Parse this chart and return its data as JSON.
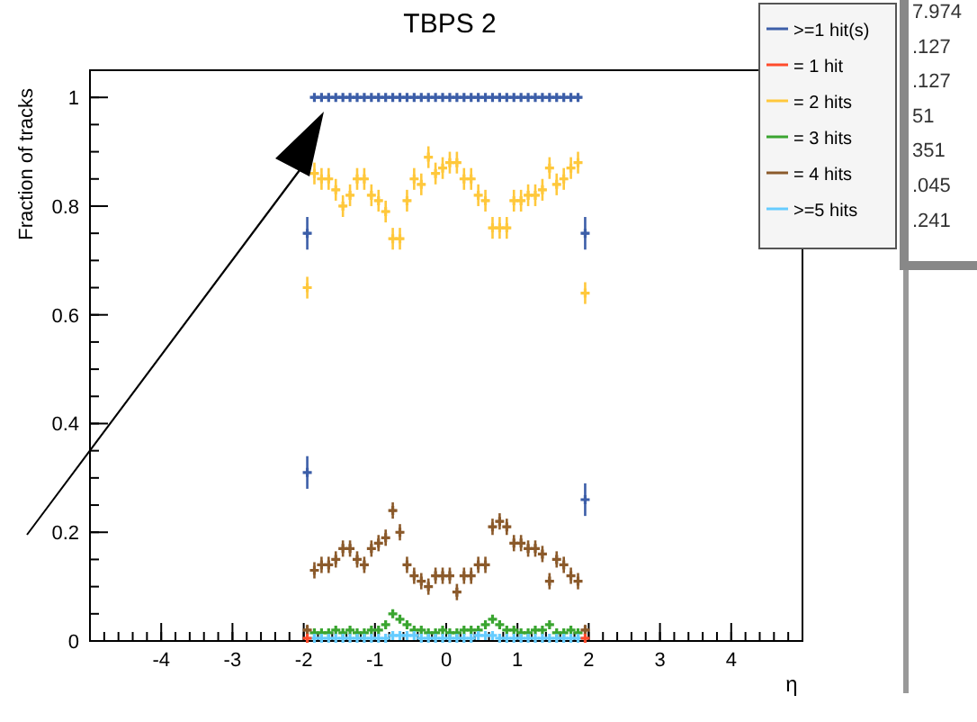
{
  "chart_data": {
    "type": "scatter",
    "title": "TBPS 2",
    "xlabel": "η",
    "ylabel": "Fraction of tracks",
    "xlim": [
      -5,
      5
    ],
    "ylim": [
      0,
      1.05
    ],
    "xticks": [
      -4,
      -3,
      -2,
      -1,
      0,
      1,
      2,
      3,
      4
    ],
    "yticks": [
      0,
      0.2,
      0.4,
      0.6,
      0.8,
      1
    ],
    "legend": "top right",
    "marker": "cross",
    "grid": false,
    "x": [
      -1.95,
      -1.85,
      -1.75,
      -1.65,
      -1.55,
      -1.45,
      -1.35,
      -1.25,
      -1.15,
      -1.05,
      -0.95,
      -0.85,
      -0.75,
      -0.65,
      -0.55,
      -0.45,
      -0.35,
      -0.25,
      -0.15,
      -0.05,
      0.05,
      0.15,
      0.25,
      0.35,
      0.45,
      0.55,
      0.65,
      0.75,
      0.85,
      0.95,
      1.05,
      1.15,
      1.25,
      1.35,
      1.45,
      1.55,
      1.65,
      1.75,
      1.85,
      1.95
    ],
    "series": [
      {
        "name": ">=1 hit(s)",
        "color": "#3c5ea8",
        "values": [
          0.75,
          1,
          1,
          1,
          1,
          1,
          1,
          1,
          1,
          1,
          1,
          1,
          1,
          1,
          1,
          1,
          1,
          1,
          1,
          1,
          1,
          1,
          1,
          1,
          1,
          1,
          1,
          1,
          1,
          1,
          1,
          1,
          1,
          1,
          1,
          1,
          1,
          1,
          1,
          0.75
        ],
        "errors": [
          0.03,
          null,
          null,
          null,
          null,
          null,
          null,
          null,
          null,
          null,
          null,
          null,
          null,
          null,
          null,
          null,
          null,
          null,
          null,
          null,
          null,
          null,
          null,
          null,
          null,
          null,
          null,
          null,
          null,
          null,
          null,
          null,
          null,
          null,
          null,
          null,
          null,
          null,
          null,
          0.03
        ],
        "xerrors": [
          0.05,
          0.05,
          0.05,
          0.05,
          0.05,
          0.05,
          0.05,
          0.05,
          0.05,
          0.05,
          0.05,
          0.05,
          0.05,
          0.05,
          0.05,
          0.05,
          0.05,
          0.05,
          0.05,
          0.05,
          0.05,
          0.05,
          0.05,
          0.05,
          0.05,
          0.05,
          0.05,
          0.05,
          0.05,
          0.05,
          0.05,
          0.05,
          0.05,
          0.05,
          0.05,
          0.05,
          0.05,
          0.05,
          0.05,
          0.05
        ]
      },
      {
        "color": "#3c5ea8",
        "x": [
          -1.95,
          1.95
        ],
        "values": [
          0.31,
          0.26
        ],
        "errors": [
          0.03,
          0.03
        ]
      },
      {
        "name": "= 1 hit",
        "color": "#ff4b2b",
        "values": [
          0.005,
          null,
          null,
          null,
          null,
          null,
          null,
          null,
          null,
          null,
          null,
          null,
          null,
          null,
          null,
          null,
          null,
          null,
          null,
          null,
          null,
          null,
          null,
          null,
          null,
          null,
          null,
          null,
          null,
          null,
          null,
          null,
          null,
          null,
          null,
          null,
          null,
          null,
          null,
          0.005
        ],
        "xerrors": [
          0.05,
          null,
          null,
          null,
          null,
          null,
          null,
          null,
          null,
          null,
          null,
          null,
          null,
          null,
          null,
          null,
          null,
          null,
          null,
          null,
          null,
          null,
          null,
          null,
          null,
          null,
          null,
          null,
          null,
          null,
          null,
          null,
          null,
          null,
          null,
          null,
          null,
          null,
          null,
          0.05
        ]
      },
      {
        "name": "= 2 hits",
        "color": "#ffc83c",
        "values": [
          0.65,
          0.86,
          0.85,
          0.85,
          0.83,
          0.8,
          0.82,
          0.85,
          0.85,
          0.82,
          0.81,
          0.79,
          0.74,
          0.74,
          0.81,
          0.85,
          0.84,
          0.89,
          0.86,
          0.87,
          0.88,
          0.88,
          0.85,
          0.85,
          0.82,
          0.81,
          0.76,
          0.76,
          0.76,
          0.81,
          0.81,
          0.82,
          0.82,
          0.83,
          0.87,
          0.84,
          0.85,
          0.87,
          0.88,
          0.64
        ],
        "errors": [
          0.02,
          0.02,
          0.02,
          0.02,
          0.02,
          0.02,
          0.02,
          0.02,
          0.02,
          0.02,
          0.02,
          0.02,
          0.02,
          0.02,
          0.02,
          0.02,
          0.02,
          0.02,
          0.02,
          0.02,
          0.02,
          0.02,
          0.02,
          0.02,
          0.02,
          0.02,
          0.02,
          0.02,
          0.02,
          0.02,
          0.02,
          0.02,
          0.02,
          0.02,
          0.02,
          0.02,
          0.02,
          0.02,
          0.02,
          0.02
        ],
        "xerrors": [
          0.05,
          0.05,
          0.05,
          0.05,
          0.05,
          0.05,
          0.05,
          0.05,
          0.05,
          0.05,
          0.05,
          0.05,
          0.05,
          0.05,
          0.05,
          0.05,
          0.05,
          0.05,
          0.05,
          0.05,
          0.05,
          0.05,
          0.05,
          0.05,
          0.05,
          0.05,
          0.05,
          0.05,
          0.05,
          0.05,
          0.05,
          0.05,
          0.05,
          0.05,
          0.05,
          0.05,
          0.05,
          0.05,
          0.05,
          0.05
        ]
      },
      {
        "name": "= 3 hits",
        "color": "#3aa530",
        "values": [
          null,
          0.015,
          0.015,
          0.015,
          0.02,
          0.015,
          0.02,
          0.015,
          0.015,
          0.02,
          0.02,
          0.03,
          0.05,
          0.04,
          0.03,
          0.02,
          0.02,
          0.015,
          0.015,
          0.02,
          0.015,
          0.015,
          0.02,
          0.02,
          0.02,
          0.03,
          0.04,
          0.03,
          0.02,
          0.02,
          0.015,
          0.015,
          0.02,
          0.02,
          0.03,
          0.015,
          0.015,
          0.02,
          0.015,
          null
        ]
      },
      {
        "name": "= 4 hits",
        "color": "#8b5a2b",
        "values": [
          0.02,
          0.13,
          0.14,
          0.14,
          0.15,
          0.17,
          0.17,
          0.15,
          0.14,
          0.17,
          0.18,
          0.19,
          0.24,
          0.2,
          0.14,
          0.12,
          0.11,
          0.1,
          0.12,
          0.12,
          0.12,
          0.09,
          0.12,
          0.12,
          0.14,
          0.14,
          0.21,
          0.22,
          0.21,
          0.18,
          0.18,
          0.17,
          0.17,
          0.16,
          0.11,
          0.15,
          0.14,
          0.12,
          0.11,
          0.02
        ],
        "errors": [
          0.01,
          0.015,
          0.015,
          0.015,
          0.015,
          0.015,
          0.015,
          0.015,
          0.015,
          0.015,
          0.015,
          0.015,
          0.015,
          0.015,
          0.015,
          0.015,
          0.015,
          0.015,
          0.015,
          0.015,
          0.015,
          0.015,
          0.015,
          0.015,
          0.015,
          0.015,
          0.015,
          0.015,
          0.015,
          0.015,
          0.015,
          0.015,
          0.015,
          0.015,
          0.015,
          0.015,
          0.015,
          0.015,
          0.015,
          0.01
        ],
        "xerrors": [
          0.05,
          0.05,
          0.05,
          0.05,
          0.05,
          0.05,
          0.05,
          0.05,
          0.05,
          0.05,
          0.05,
          0.05,
          0.05,
          0.05,
          0.05,
          0.05,
          0.05,
          0.05,
          0.05,
          0.05,
          0.05,
          0.05,
          0.05,
          0.05,
          0.05,
          0.05,
          0.05,
          0.05,
          0.05,
          0.05,
          0.05,
          0.05,
          0.05,
          0.05,
          0.05,
          0.05,
          0.05,
          0.05,
          0.05,
          0.05
        ]
      },
      {
        "name": ">=5 hits",
        "color": "#66ccff",
        "values": [
          null,
          0.005,
          0.005,
          0.005,
          0.005,
          0.005,
          0.005,
          0.005,
          0.005,
          0.005,
          0.005,
          0.005,
          0.01,
          0.01,
          0.01,
          0.01,
          0.005,
          0.005,
          0.005,
          0.005,
          0.005,
          0.005,
          0.005,
          0.005,
          0.01,
          0.01,
          0.01,
          0.005,
          0.005,
          0.005,
          0.005,
          0.005,
          0.005,
          0.005,
          0.005,
          0.005,
          0.005,
          0.005,
          0.005,
          null
        ]
      }
    ],
    "annotations": [
      "7.974",
      ".127",
      ".127",
      "51",
      "351",
      ".045",
      ".241"
    ]
  }
}
